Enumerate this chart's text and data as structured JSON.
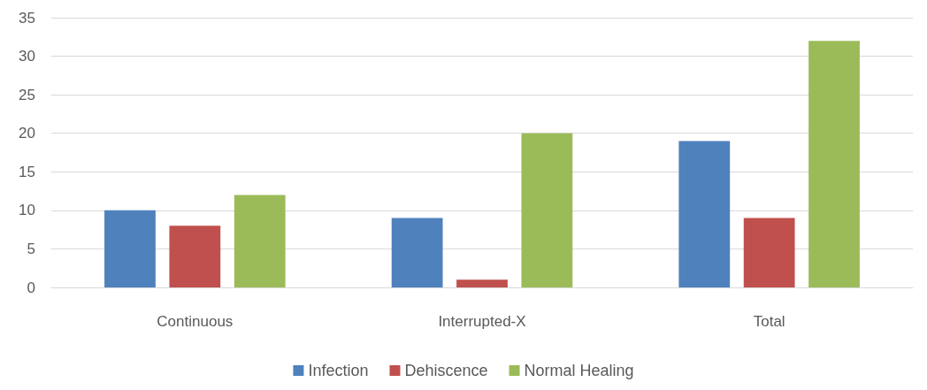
{
  "chart_data": {
    "type": "bar",
    "categories": [
      "Continuous",
      "Interrupted-X",
      "Total"
    ],
    "series": [
      {
        "name": "Infection",
        "color": "#4f81bd",
        "values": [
          10,
          9,
          19
        ]
      },
      {
        "name": "Dehiscence",
        "color": "#c0504d",
        "values": [
          8,
          1,
          9
        ]
      },
      {
        "name": "Normal Healing",
        "color": "#9bbb59",
        "values": [
          12,
          20,
          32
        ]
      }
    ],
    "ylim": [
      0,
      35
    ],
    "yticks": [
      0,
      5,
      10,
      15,
      20,
      25,
      30,
      35
    ],
    "grid": "y",
    "legend": "bottom"
  }
}
